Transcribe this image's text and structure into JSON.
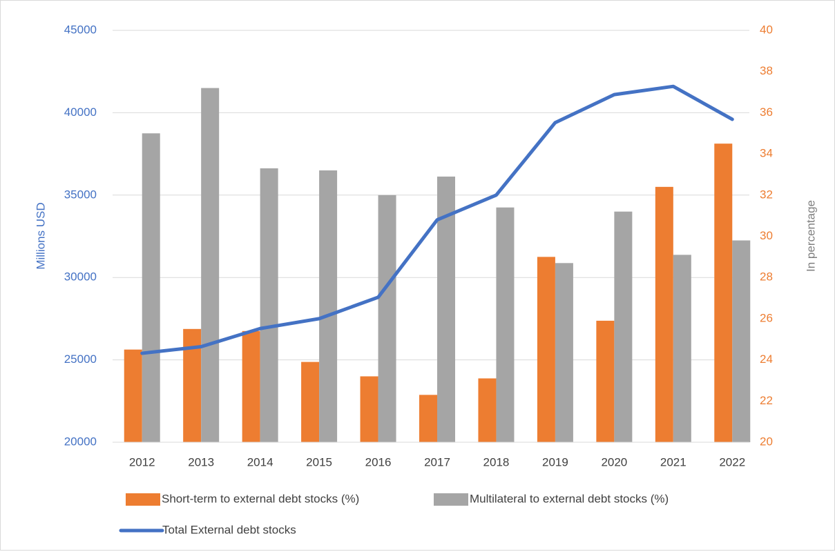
{
  "chart_data": {
    "type": "bar",
    "categories": [
      "2012",
      "2013",
      "2014",
      "2015",
      "2016",
      "2017",
      "2018",
      "2019",
      "2020",
      "2021",
      "2022"
    ],
    "series": [
      {
        "name": "Short-term to external debt stocks (%)",
        "color": "#ed7d31",
        "axis": "y2",
        "type": "bar",
        "values": [
          24.5,
          25.5,
          25.4,
          23.9,
          23.2,
          22.3,
          23.1,
          29.0,
          25.9,
          32.4,
          34.5
        ]
      },
      {
        "name": "Multilateral to external debt stocks (%)",
        "color": "#a5a5a5",
        "axis": "y2",
        "type": "bar",
        "values": [
          35.0,
          37.2,
          33.3,
          33.2,
          32.0,
          32.9,
          31.4,
          28.7,
          31.2,
          29.1,
          29.8
        ]
      },
      {
        "name": "Total External debt stocks",
        "color": "#4472c4",
        "axis": "y",
        "type": "line",
        "values": [
          25400,
          25800,
          26900,
          27500,
          28800,
          33500,
          35000,
          39400,
          41100,
          41600,
          39600
        ]
      }
    ],
    "ylabel": "Millions USD",
    "y2label": "In percentage",
    "ylim": [
      20000,
      45000
    ],
    "yticks": [
      20000,
      25000,
      30000,
      35000,
      40000,
      45000
    ],
    "y2lim": [
      20,
      40
    ],
    "y2ticks": [
      20,
      22,
      24,
      26,
      28,
      30,
      32,
      34,
      36,
      38,
      40
    ],
    "grid": true,
    "legend": "bottom"
  }
}
